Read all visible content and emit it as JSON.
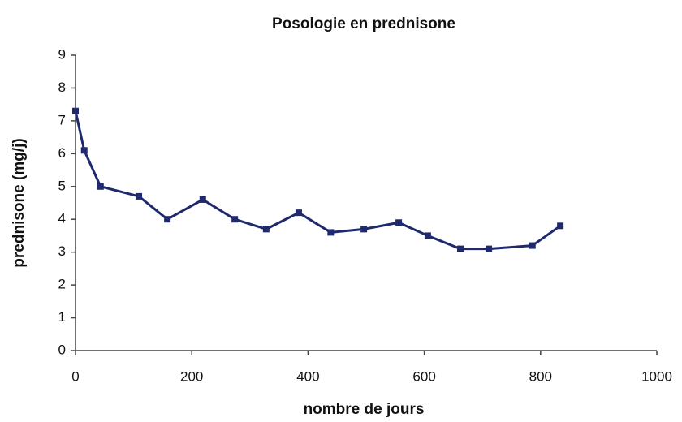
{
  "chart_data": {
    "type": "line",
    "title": "Posologie en prednisone",
    "x_label": "nombre de jours",
    "y_label": "prednisone (mg/j)",
    "x": [
      0,
      15,
      43,
      109,
      158,
      219,
      274,
      328,
      384,
      439,
      496,
      556,
      606,
      662,
      711,
      786,
      834
    ],
    "series": [
      {
        "name": "prednisone",
        "color": "#1f2a6e",
        "values": [
          7.3,
          6.1,
          5.0,
          4.7,
          4.0,
          4.6,
          4.0,
          3.7,
          4.2,
          3.6,
          3.7,
          3.9,
          3.5,
          3.1,
          3.1,
          3.2,
          3.8
        ]
      }
    ],
    "xlim": [
      0,
      1000
    ],
    "xticks": [
      0,
      200,
      400,
      600,
      800,
      1000
    ],
    "ylim": [
      0,
      9
    ],
    "yticks": [
      0,
      1,
      2,
      3,
      4,
      5,
      6,
      7,
      8,
      9
    ],
    "grid": false
  }
}
